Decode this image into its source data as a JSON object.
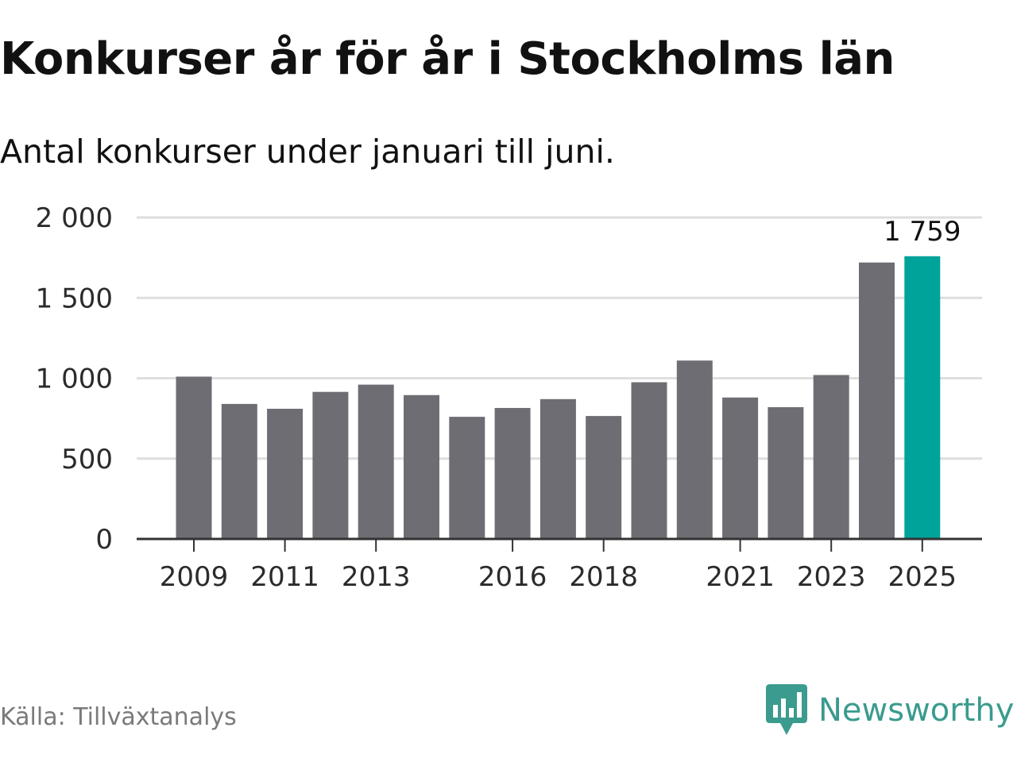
{
  "header": {
    "title": "Konkurser år för år i Stockholms län",
    "subtitle": "Antal konkurser under januari till juni."
  },
  "footer": {
    "source": "Källa: Tillväxtanalys",
    "brand": "Newsworthy",
    "brand_icon": "newsworthy-logo-icon"
  },
  "colors": {
    "bar": "#6e6d73",
    "highlight": "#00a39a",
    "grid": "#dedede",
    "axis": "#333333",
    "brand": "#3a9b8e"
  },
  "chart_data": {
    "type": "bar",
    "categories": [
      "2009",
      "2010",
      "2011",
      "2012",
      "2013",
      "2014",
      "2015",
      "2016",
      "2017",
      "2018",
      "2019",
      "2020",
      "2021",
      "2022",
      "2023",
      "2024",
      "2025"
    ],
    "values": [
      1010,
      840,
      810,
      915,
      960,
      895,
      760,
      815,
      870,
      765,
      975,
      1110,
      880,
      820,
      1020,
      1720,
      1759
    ],
    "x_tick_labels": [
      "2009",
      "2011",
      "2013",
      "2016",
      "2018",
      "2021",
      "2023",
      "2025"
    ],
    "y_ticks": [
      0,
      500,
      1000,
      1500,
      2000
    ],
    "y_tick_labels": [
      "0",
      "500",
      "1 000",
      "1 500",
      "2 000"
    ],
    "ylim": [
      0,
      2000
    ],
    "highlight": "2025",
    "annotations": [
      {
        "category": "2025",
        "text": "1 759"
      }
    ],
    "grid": true,
    "legend": "none"
  }
}
